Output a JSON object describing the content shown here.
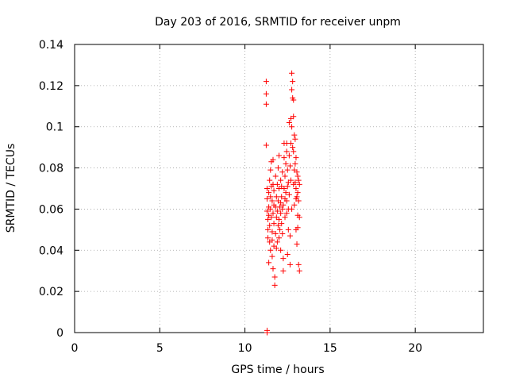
{
  "chart_data": {
    "type": "scatter",
    "title": "Day 203 of 2016, SRMTID for receiver unpm",
    "xlabel": "GPS time / hours",
    "ylabel": "SRMTID / TECUs",
    "xlim": [
      0,
      24
    ],
    "ylim": [
      0,
      0.14
    ],
    "xticks": [
      0,
      5,
      10,
      15,
      20
    ],
    "xtick_labels": [
      "0",
      "5",
      "10",
      "15",
      "20"
    ],
    "yticks": [
      0,
      0.02,
      0.04,
      0.06,
      0.08,
      0.1,
      0.12,
      0.14
    ],
    "ytick_labels": [
      "0",
      "0.02",
      "0.04",
      "0.06",
      "0.08",
      "0.1",
      "0.12",
      "0.14"
    ],
    "grid": true,
    "legend": "none",
    "series": [
      {
        "marker": "plus",
        "color": "#ff0000",
        "points": [
          [
            11.25,
            0.122
          ],
          [
            11.25,
            0.116
          ],
          [
            11.25,
            0.111
          ],
          [
            11.25,
            0.091
          ],
          [
            11.3,
            0.07
          ],
          [
            11.3,
            0.065
          ],
          [
            11.3,
            0.059
          ],
          [
            11.35,
            0.055
          ],
          [
            11.35,
            0.05
          ],
          [
            11.35,
            0.046
          ],
          [
            11.4,
            0.068
          ],
          [
            11.4,
            0.061
          ],
          [
            11.4,
            0.057
          ],
          [
            11.45,
            0.074
          ],
          [
            11.45,
            0.052
          ],
          [
            11.45,
            0.044
          ],
          [
            11.5,
            0.079
          ],
          [
            11.5,
            0.066
          ],
          [
            11.5,
            0.06
          ],
          [
            11.5,
            0.04
          ],
          [
            11.55,
            0.083
          ],
          [
            11.55,
            0.071
          ],
          [
            11.55,
            0.056
          ],
          [
            11.6,
            0.064
          ],
          [
            11.6,
            0.049
          ],
          [
            11.6,
            0.037
          ],
          [
            11.65,
            0.084
          ],
          [
            11.65,
            0.072
          ],
          [
            11.65,
            0.058
          ],
          [
            11.65,
            0.031
          ],
          [
            11.7,
            0.069
          ],
          [
            11.7,
            0.053
          ],
          [
            11.7,
            0.042
          ],
          [
            11.75,
            0.027
          ],
          [
            11.75,
            0.023
          ],
          [
            11.8,
            0.076
          ],
          [
            11.8,
            0.061
          ],
          [
            11.8,
            0.048
          ],
          [
            11.85,
            0.066
          ],
          [
            11.85,
            0.056
          ],
          [
            11.9,
            0.072
          ],
          [
            11.9,
            0.059
          ],
          [
            11.9,
            0.044
          ],
          [
            11.95,
            0.08
          ],
          [
            11.95,
            0.064
          ],
          [
            11.95,
            0.052
          ],
          [
            12.0,
            0.086
          ],
          [
            12.0,
            0.07
          ],
          [
            12.0,
            0.055
          ],
          [
            12.0,
            0.046
          ],
          [
            12.05,
            0.061
          ],
          [
            12.05,
            0.05
          ],
          [
            12.1,
            0.074
          ],
          [
            12.1,
            0.058
          ],
          [
            12.1,
            0.04
          ],
          [
            12.15,
            0.066
          ],
          [
            12.15,
            0.053
          ],
          [
            12.2,
            0.078
          ],
          [
            12.2,
            0.06
          ],
          [
            12.2,
            0.048
          ],
          [
            12.25,
            0.062
          ],
          [
            12.25,
            0.036
          ],
          [
            12.25,
            0.03
          ],
          [
            12.3,
            0.092
          ],
          [
            12.3,
            0.085
          ],
          [
            12.3,
            0.07
          ],
          [
            12.35,
            0.076
          ],
          [
            12.35,
            0.056
          ],
          [
            12.4,
            0.082
          ],
          [
            12.4,
            0.068
          ],
          [
            12.45,
            0.092
          ],
          [
            12.45,
            0.088
          ],
          [
            12.45,
            0.064
          ],
          [
            12.5,
            0.079
          ],
          [
            12.5,
            0.071
          ],
          [
            12.5,
            0.038
          ],
          [
            12.55,
            0.073
          ],
          [
            12.55,
            0.06
          ],
          [
            12.6,
            0.102
          ],
          [
            12.6,
            0.086
          ],
          [
            12.6,
            0.067
          ],
          [
            12.65,
            0.081
          ],
          [
            12.65,
            0.047
          ],
          [
            12.65,
            0.033
          ],
          [
            12.7,
            0.104
          ],
          [
            12.7,
            0.092
          ],
          [
            12.7,
            0.074
          ],
          [
            12.75,
            0.126
          ],
          [
            12.75,
            0.118
          ],
          [
            12.75,
            0.1
          ],
          [
            12.8,
            0.122
          ],
          [
            12.8,
            0.114
          ],
          [
            12.8,
            0.09
          ],
          [
            12.85,
            0.113
          ],
          [
            12.85,
            0.105
          ],
          [
            12.85,
            0.088
          ],
          [
            12.9,
            0.096
          ],
          [
            12.9,
            0.079
          ],
          [
            12.9,
            0.062
          ],
          [
            12.95,
            0.094
          ],
          [
            12.95,
            0.082
          ],
          [
            12.95,
            0.073
          ],
          [
            13.0,
            0.085
          ],
          [
            13.0,
            0.07
          ],
          [
            13.0,
            0.05
          ],
          [
            13.05,
            0.078
          ],
          [
            13.05,
            0.066
          ],
          [
            13.05,
            0.043
          ],
          [
            13.1,
            0.076
          ],
          [
            13.1,
            0.068
          ],
          [
            13.1,
            0.057
          ],
          [
            13.15,
            0.074
          ],
          [
            13.15,
            0.064
          ],
          [
            13.15,
            0.033
          ],
          [
            13.2,
            0.072
          ],
          [
            13.2,
            0.056
          ],
          [
            13.2,
            0.03
          ],
          [
            11.6,
            0.045
          ],
          [
            11.85,
            0.041
          ],
          [
            12.1,
            0.063
          ],
          [
            12.35,
            0.065
          ],
          [
            12.55,
            0.05
          ],
          [
            12.75,
            0.06
          ],
          [
            13.0,
            0.065
          ],
          [
            11.4,
            0.034
          ],
          [
            11.7,
            0.062
          ],
          [
            12.15,
            0.071
          ],
          [
            12.45,
            0.058
          ],
          [
            12.85,
            0.072
          ],
          [
            13.1,
            0.051
          ],
          [
            11.3,
            0.0
          ],
          [
            11.3,
            0.001
          ]
        ]
      }
    ]
  }
}
